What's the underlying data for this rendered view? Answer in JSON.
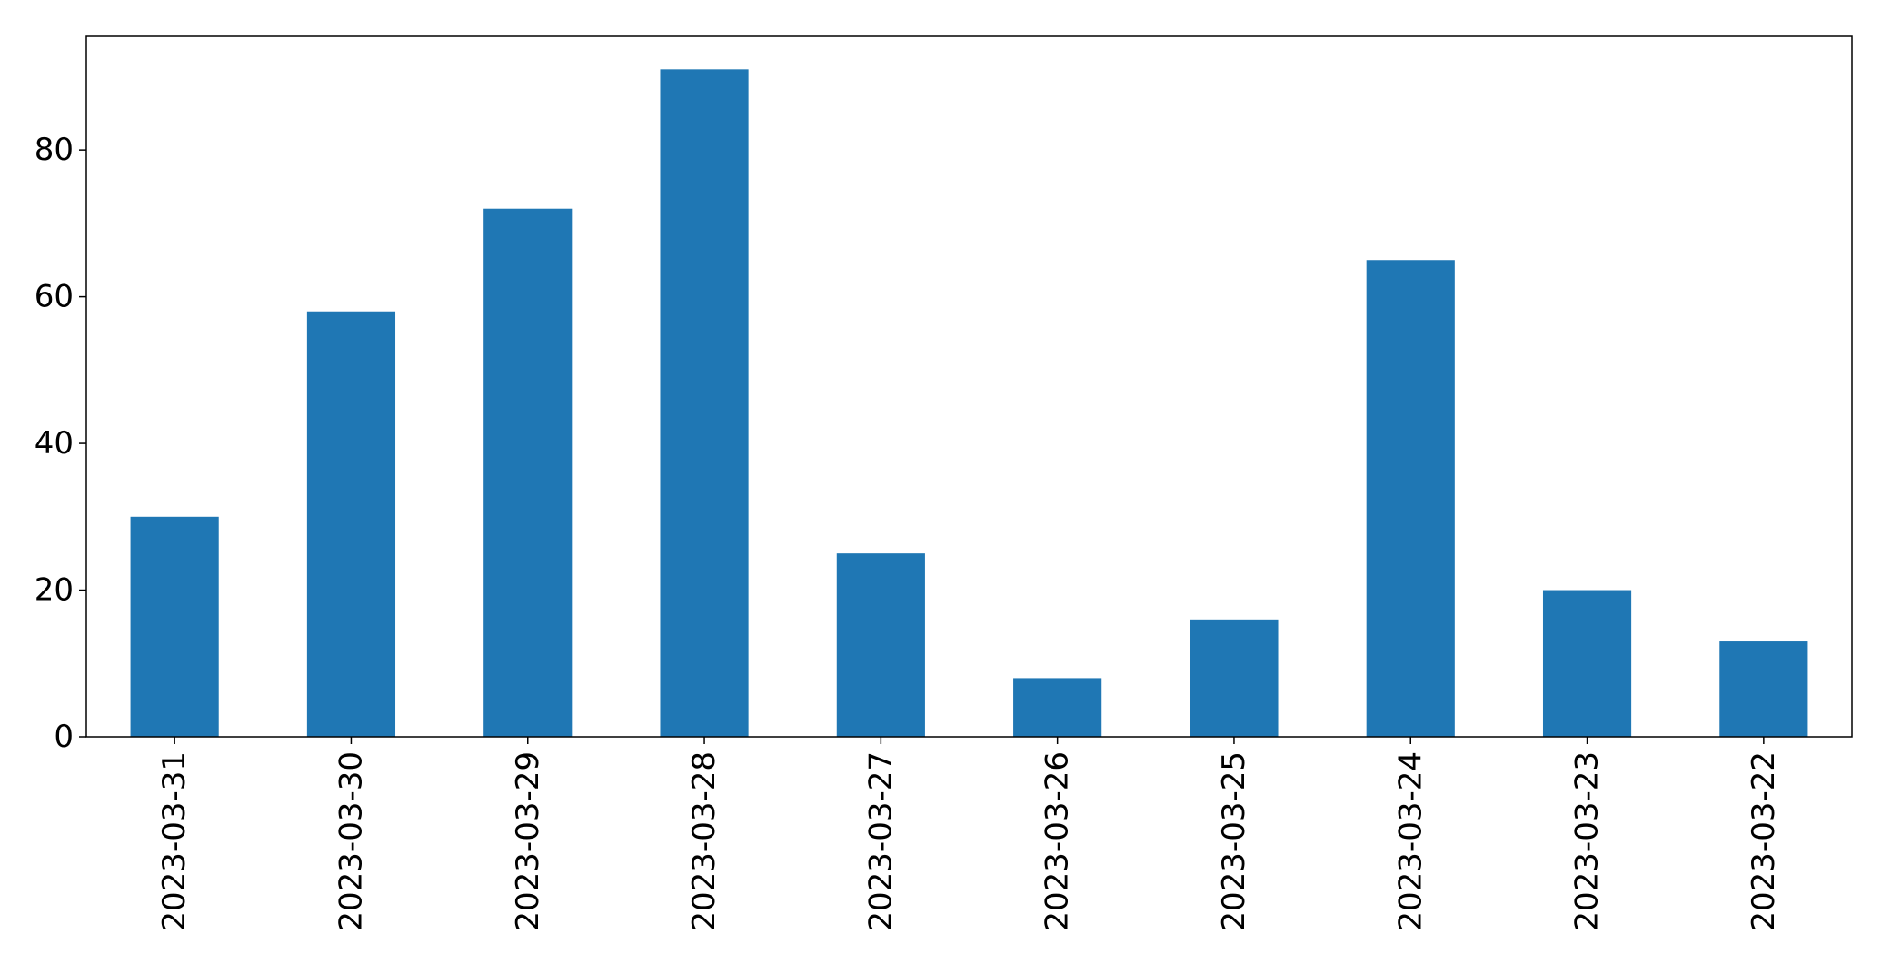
{
  "chart_data": {
    "type": "bar",
    "title": "",
    "xlabel": "",
    "ylabel": "",
    "categories": [
      "2023-03-31",
      "2023-03-30",
      "2023-03-29",
      "2023-03-28",
      "2023-03-27",
      "2023-03-26",
      "2023-03-25",
      "2023-03-24",
      "2023-03-23",
      "2023-03-22"
    ],
    "values": [
      30,
      58,
      72,
      91,
      25,
      8,
      16,
      65,
      20,
      13
    ],
    "ylim": [
      0,
      95.5
    ],
    "yticks": [
      0,
      20,
      40,
      60,
      80
    ],
    "grid": false,
    "legend": "none",
    "bar_color": "#1f77b4"
  }
}
